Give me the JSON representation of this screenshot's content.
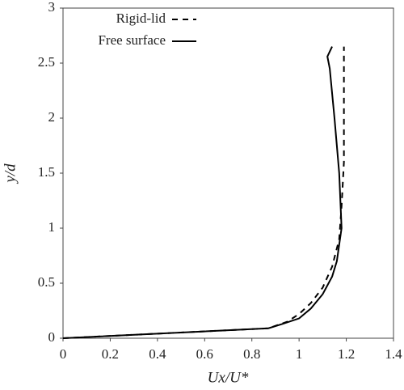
{
  "chart_data": {
    "type": "line",
    "x_label": "Ux/U*",
    "y_label": "y/d",
    "xlim": [
      0,
      1.4
    ],
    "xticks": [
      0,
      0.2,
      0.4,
      0.6,
      0.8,
      1,
      1.2,
      1.4
    ],
    "ylim": [
      0,
      3
    ],
    "yticks": [
      0,
      0.5,
      1,
      1.5,
      2,
      2.5,
      3
    ],
    "legend": "upper left",
    "series": [
      {
        "name": "Rigid-lid",
        "color": "#000000",
        "style": "dashed",
        "x": [
          0,
          0.87,
          0.95,
          1.0,
          1.05,
          1.1,
          1.14,
          1.17,
          1.18,
          1.19,
          1.19,
          1.19
        ],
        "values": [
          0,
          0.09,
          0.15,
          0.22,
          0.32,
          0.46,
          0.65,
          0.9,
          1.2,
          1.6,
          2.0,
          2.65
        ]
      },
      {
        "name": "Free surface",
        "color": "#000000",
        "style": "solid",
        "x": [
          0,
          0.87,
          0.93,
          1.0,
          1.05,
          1.1,
          1.14,
          1.16,
          1.17,
          1.18,
          1.17,
          1.15,
          1.13,
          1.12,
          1.14
        ],
        "values": [
          0,
          0.09,
          0.13,
          0.18,
          0.27,
          0.4,
          0.56,
          0.7,
          0.85,
          1.0,
          1.5,
          2.0,
          2.45,
          2.56,
          2.65
        ]
      }
    ]
  }
}
